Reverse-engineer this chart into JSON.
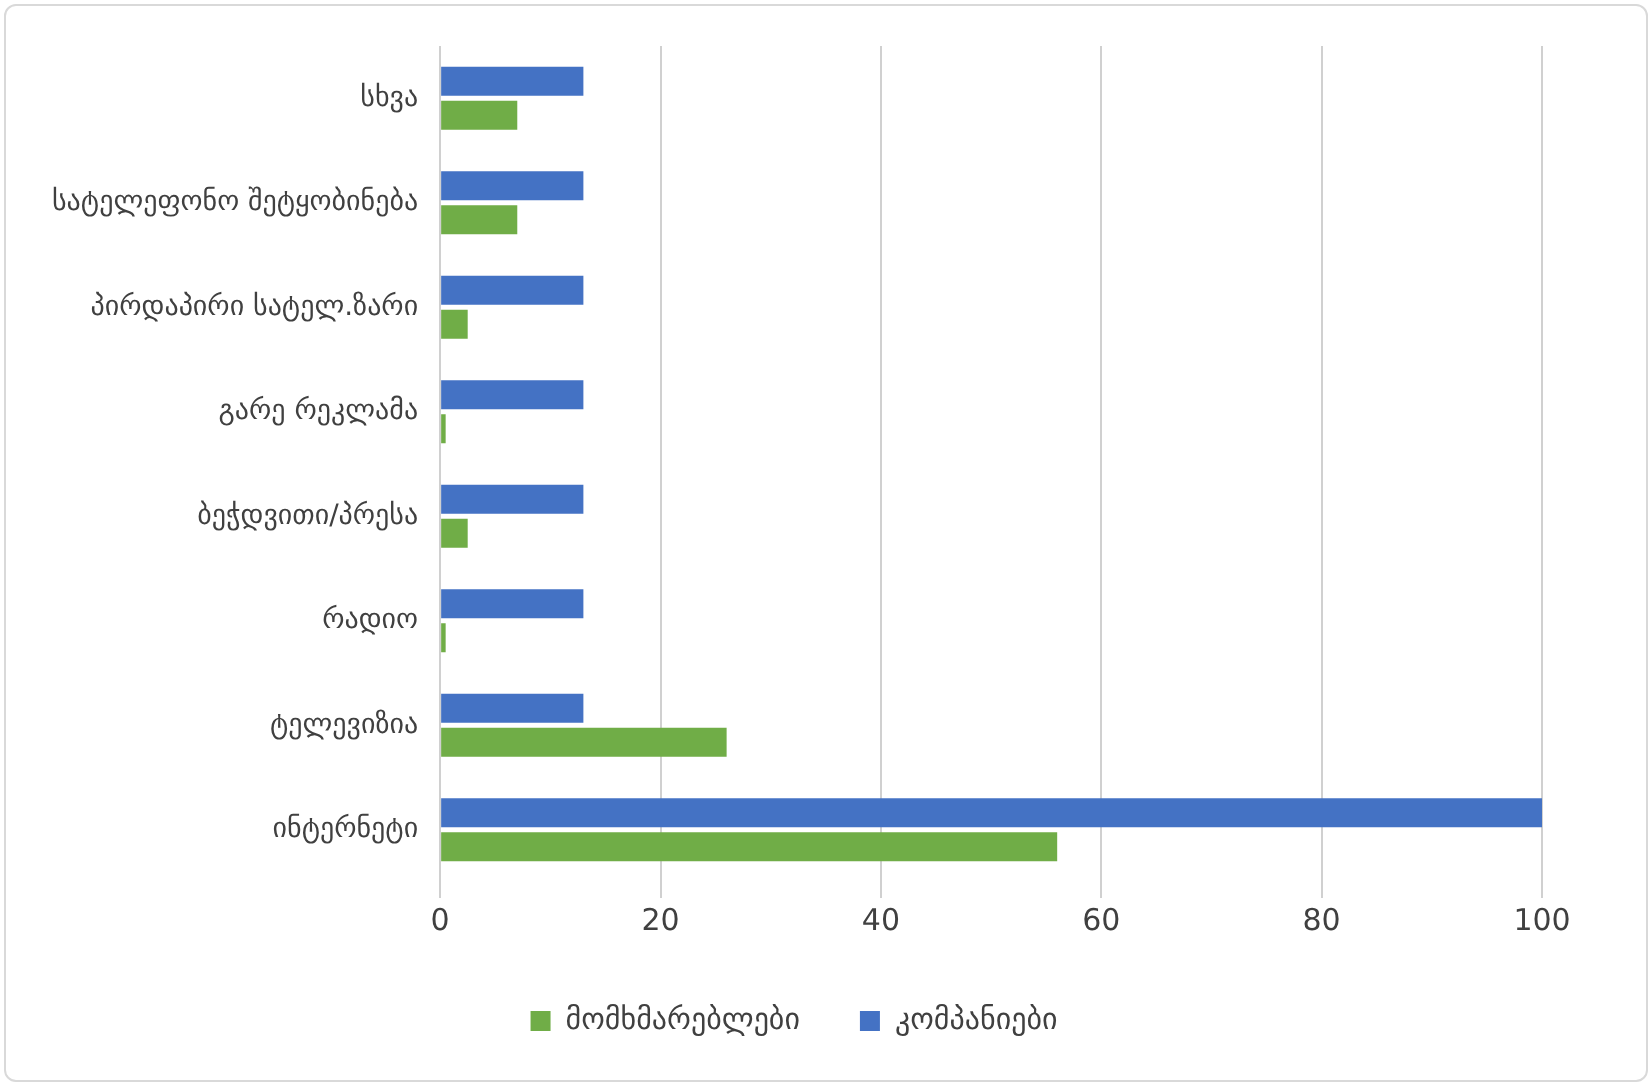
{
  "chart_data": {
    "type": "bar",
    "orientation": "horizontal",
    "categories": [
      "სხვა",
      "სატელეფონო შეტყობინება",
      "პირდაპირი სატელ.ზარი",
      "გარე რეკლამა",
      "ბეჭდვითი/პრესა",
      "რადიო",
      "ტელევიზია",
      "ინტერნეტი"
    ],
    "series": [
      {
        "name": "მომხმარებლები",
        "color": "#70ad47",
        "values": [
          7,
          7,
          2.5,
          0.5,
          2.5,
          0.5,
          26,
          56
        ]
      },
      {
        "name": "კომპანიები",
        "color": "#4472c4",
        "values": [
          13,
          13,
          13,
          13,
          13,
          13,
          13,
          100
        ]
      }
    ],
    "xlim": [
      0,
      100
    ],
    "xticks": [
      0,
      20,
      40,
      60,
      80,
      100
    ],
    "grid": "x",
    "legend": "bottom"
  }
}
